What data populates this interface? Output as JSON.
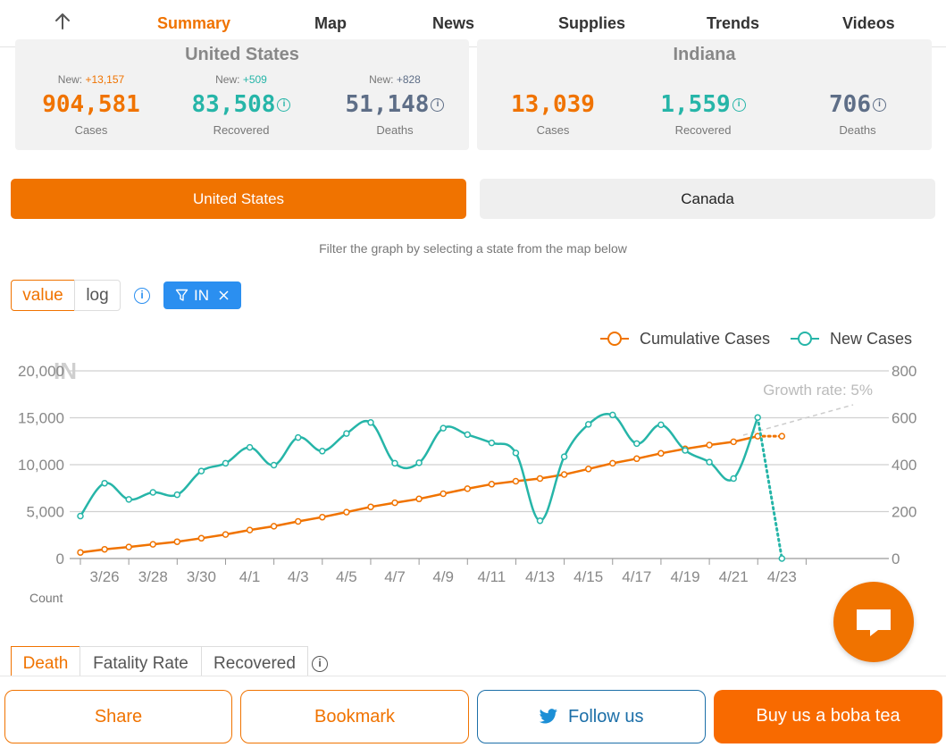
{
  "nav": {
    "tabs": [
      "Summary",
      "Map",
      "News",
      "Supplies",
      "Trends",
      "Videos"
    ],
    "active_tab": "Summary"
  },
  "us": {
    "title": "United States",
    "cases": {
      "new_prefix": "New: ",
      "new": "+13,157",
      "value": "904,581",
      "label": "Cases"
    },
    "recovered": {
      "new_prefix": "New: ",
      "new": "+509",
      "value": "83,508",
      "label": "Recovered"
    },
    "deaths": {
      "new_prefix": "New: ",
      "new": "+828",
      "value": "51,148",
      "label": "Deaths"
    }
  },
  "state": {
    "title": "Indiana",
    "cases": {
      "value": "13,039",
      "label": "Cases"
    },
    "recovered": {
      "value": "1,559",
      "label": "Recovered"
    },
    "deaths": {
      "value": "706",
      "label": "Deaths"
    }
  },
  "countries": {
    "active": "United States",
    "inactive": "Canada"
  },
  "filter_hint": "Filter the graph by selecting a state from the map below",
  "scale": {
    "value_label": "value",
    "log_label": "log"
  },
  "filter_tag": {
    "label": "IN"
  },
  "colors": {
    "accent": "#f07300",
    "teal": "#26b5a8",
    "slate": "#5e6e87",
    "blue": "#2b8ff0"
  },
  "chart_data": {
    "type": "line",
    "watermark": "IN",
    "annotation": "Growth rate: 5%",
    "count_label": "Count",
    "x_tick_labels": [
      "3/26",
      "3/28",
      "3/30",
      "4/1",
      "4/3",
      "4/5",
      "4/7",
      "4/9",
      "4/11",
      "4/13",
      "4/15",
      "4/17",
      "4/19",
      "4/21",
      "4/23"
    ],
    "dates": [
      "3/26",
      "3/27",
      "3/28",
      "3/29",
      "3/30",
      "3/31",
      "4/1",
      "4/2",
      "4/3",
      "4/4",
      "4/5",
      "4/6",
      "4/7",
      "4/8",
      "4/9",
      "4/10",
      "4/11",
      "4/12",
      "4/13",
      "4/14",
      "4/15",
      "4/16",
      "4/17",
      "4/18",
      "4/19",
      "4/20",
      "4/21",
      "4/22",
      "4/23",
      "4/24"
    ],
    "y_left": {
      "ylim": [
        0,
        20000
      ],
      "ticks": [
        "0",
        "5,000",
        "10,000",
        "15,000",
        "20,000"
      ]
    },
    "y_right": {
      "ylim": [
        0,
        800
      ],
      "ticks": [
        "0",
        "200",
        "400",
        "600",
        "800"
      ]
    },
    "series": [
      {
        "name": "Cumulative Cases",
        "axis": "left",
        "color": "#f07300",
        "values": [
          645,
          981,
          1232,
          1513,
          1786,
          2159,
          2565,
          3039,
          3437,
          3953,
          4411,
          4944,
          5507,
          5943,
          6351,
          6907,
          7435,
          7928,
          8236,
          8527,
          8955,
          9542,
          10154,
          10641,
          11211,
          11686,
          12097,
          12438,
          13039,
          13039
        ],
        "projected_from_index": 28
      },
      {
        "name": "New Cases",
        "axis": "right",
        "color": "#26b5a8",
        "values": [
          181,
          321,
          252,
          282,
          272,
          373,
          406,
          474,
          398,
          516,
          458,
          533,
          580,
          406,
          408,
          556,
          528,
          493,
          450,
          161,
          434,
          572,
          612,
          490,
          570,
          461,
          411,
          341,
          601,
          0
        ],
        "projected_from_index": 28
      }
    ]
  },
  "metric_tabs": [
    "Death",
    "Fatality Rate",
    "Recovered"
  ],
  "bottom": {
    "share": "Share",
    "bookmark": "Bookmark",
    "follow": "Follow us",
    "boba": "Buy us a boba tea"
  }
}
